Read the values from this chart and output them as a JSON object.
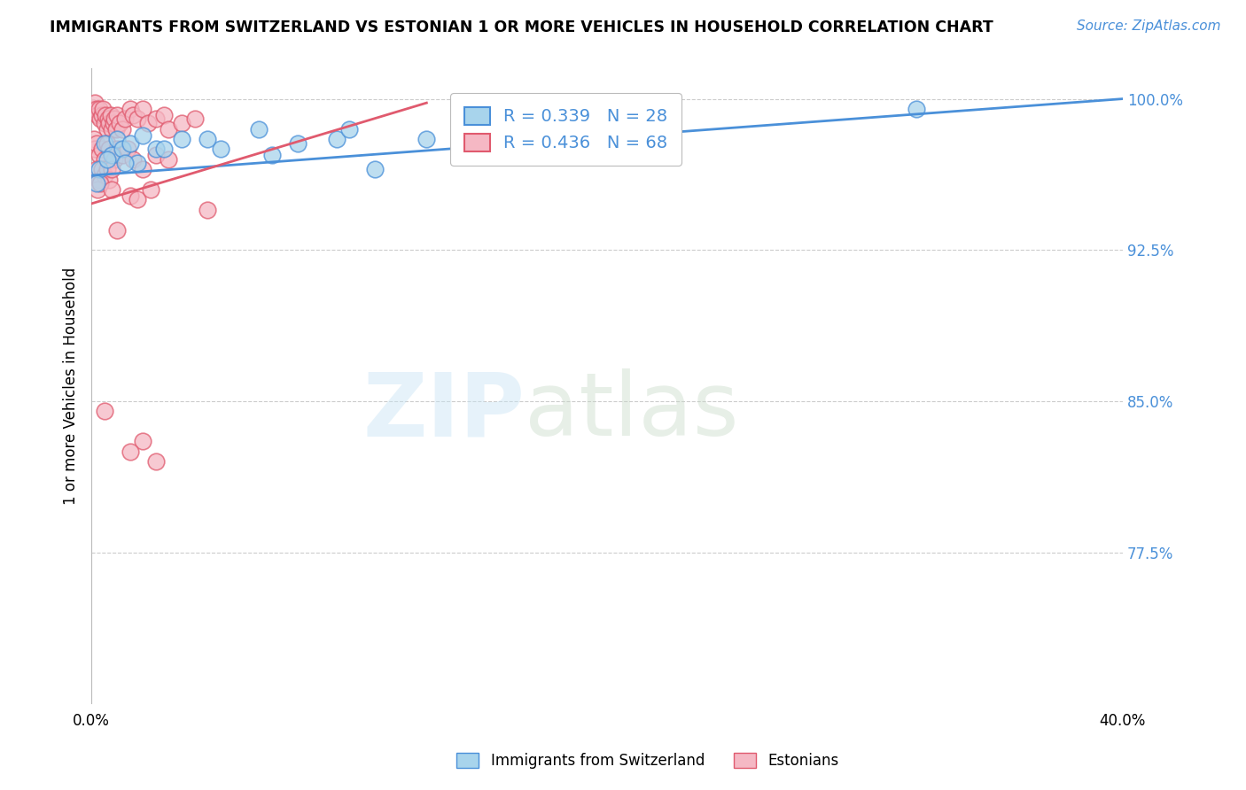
{
  "title": "IMMIGRANTS FROM SWITZERLAND VS ESTONIAN 1 OR MORE VEHICLES IN HOUSEHOLD CORRELATION CHART",
  "source": "Source: ZipAtlas.com",
  "legend_blue_r": "R = 0.339",
  "legend_blue_n": "N = 28",
  "legend_pink_r": "R = 0.436",
  "legend_pink_n": "N = 68",
  "legend_label_blue": "Immigrants from Switzerland",
  "legend_label_pink": "Estonians",
  "yaxis_label": "1 or more Vehicles in Household",
  "blue_color": "#A8D4EC",
  "pink_color": "#F5B8C4",
  "line_blue_color": "#4A90D9",
  "line_pink_color": "#E05A6E",
  "blue_x": [
    0.3,
    0.5,
    0.8,
    1.0,
    1.2,
    1.5,
    1.8,
    2.0,
    2.5,
    3.5,
    5.0,
    6.5,
    8.0,
    9.5,
    11.0,
    13.0,
    15.0,
    17.0,
    19.0,
    21.0,
    0.2,
    0.6,
    1.3,
    2.8,
    4.5,
    7.0,
    10.0,
    32.0
  ],
  "blue_y": [
    96.5,
    97.8,
    97.2,
    98.0,
    97.5,
    97.8,
    96.8,
    98.2,
    97.5,
    98.0,
    97.5,
    98.5,
    97.8,
    98.0,
    96.5,
    98.0,
    97.5,
    98.2,
    97.8,
    98.5,
    95.8,
    97.0,
    96.8,
    97.5,
    98.0,
    97.2,
    98.5,
    99.5
  ],
  "pink_x": [
    0.1,
    0.15,
    0.2,
    0.25,
    0.3,
    0.35,
    0.4,
    0.45,
    0.5,
    0.55,
    0.6,
    0.65,
    0.7,
    0.75,
    0.8,
    0.85,
    0.9,
    0.95,
    1.0,
    1.1,
    1.2,
    1.3,
    1.5,
    1.6,
    1.8,
    2.0,
    2.2,
    2.5,
    2.8,
    3.0,
    3.5,
    4.0,
    0.1,
    0.15,
    0.2,
    0.3,
    0.4,
    0.5,
    0.6,
    0.7,
    0.8,
    0.9,
    1.0,
    1.2,
    1.4,
    1.6,
    2.0,
    2.5,
    3.0,
    0.2,
    0.3,
    0.4,
    0.5,
    0.6,
    0.7,
    0.8,
    0.25,
    0.35,
    1.5,
    0.8,
    1.8,
    2.3,
    1.0,
    4.5,
    0.5,
    2.0,
    1.5,
    2.5
  ],
  "pink_y": [
    99.5,
    99.8,
    99.5,
    99.2,
    99.5,
    99.0,
    99.2,
    99.5,
    98.8,
    99.2,
    98.5,
    99.0,
    98.8,
    99.2,
    98.5,
    98.8,
    99.0,
    98.5,
    99.2,
    98.8,
    98.5,
    99.0,
    99.5,
    99.2,
    99.0,
    99.5,
    98.8,
    99.0,
    99.2,
    98.5,
    98.8,
    99.0,
    98.0,
    97.5,
    97.8,
    97.2,
    97.5,
    97.0,
    97.8,
    97.5,
    97.2,
    97.0,
    97.5,
    97.2,
    97.5,
    97.0,
    96.5,
    97.2,
    97.0,
    96.5,
    96.0,
    96.5,
    96.2,
    96.5,
    96.0,
    96.5,
    95.5,
    95.8,
    95.2,
    95.5,
    95.0,
    95.5,
    93.5,
    94.5,
    84.5,
    83.0,
    82.5,
    82.0
  ],
  "xlim": [
    0.0,
    40.0
  ],
  "ylim": [
    70.0,
    101.5
  ],
  "y_ticks_pct": [
    77.5,
    85.0,
    92.5,
    100.0
  ],
  "background_color": "#FFFFFF",
  "grid_color": "#CCCCCC",
  "blue_line_x": [
    0.0,
    40.0
  ],
  "blue_line_y": [
    96.2,
    100.0
  ],
  "pink_line_x": [
    0.0,
    13.0
  ],
  "pink_line_y": [
    94.8,
    99.8
  ]
}
